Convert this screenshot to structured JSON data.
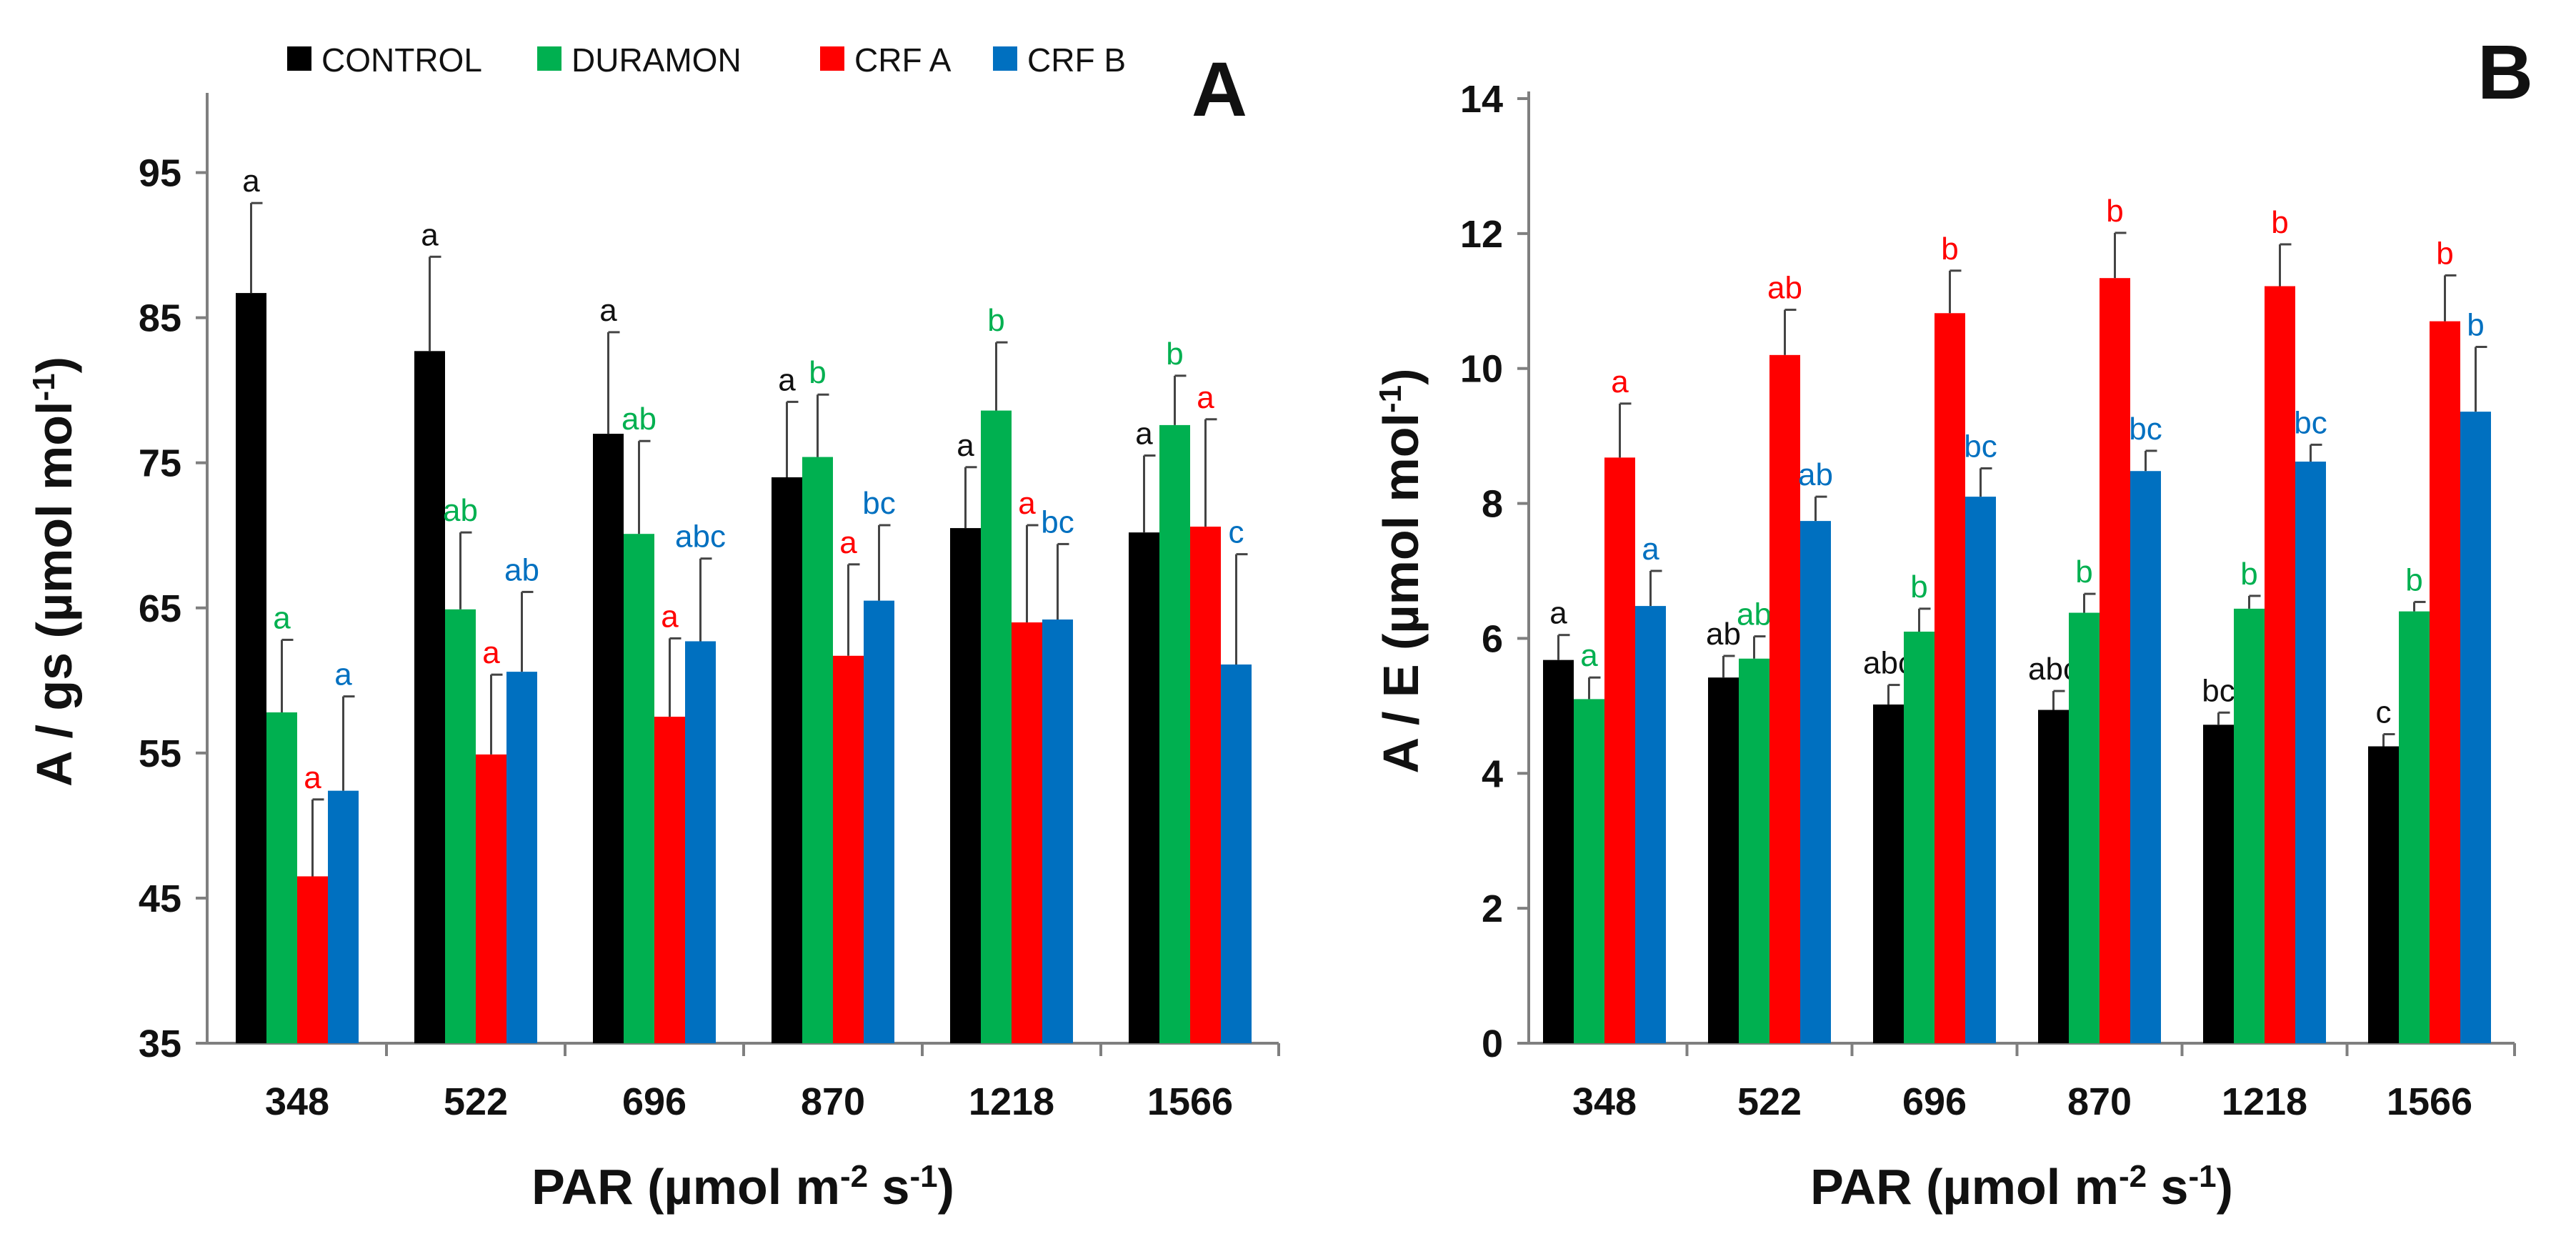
{
  "chart_data": [
    {
      "type": "bar",
      "panel_label": "A",
      "title": "",
      "xlabel": "PAR (µmol m-2 s-1)",
      "ylabel": "A / gs (µmol mol-1)",
      "ylim": [
        35,
        100
      ],
      "yticks": [
        35,
        45,
        55,
        65,
        75,
        85,
        95
      ],
      "categories": [
        "348",
        "522",
        "696",
        "870",
        "1218",
        "1566"
      ],
      "series": [
        {
          "name": "CONTROL",
          "color": "#000000",
          "values": [
            86.7,
            82.7,
            77.0,
            74.0,
            70.5,
            70.2
          ],
          "errors": [
            6.2,
            6.5,
            7.0,
            5.2,
            4.2,
            5.3
          ],
          "letters": [
            "a",
            "a",
            "a",
            "a",
            "a",
            "a"
          ]
        },
        {
          "name": "DURAMON",
          "color": "#00b050",
          "values": [
            57.8,
            64.9,
            70.1,
            75.4,
            78.6,
            77.6
          ],
          "errors": [
            5.0,
            5.3,
            6.4,
            4.3,
            4.7,
            3.4
          ],
          "letters": [
            "a",
            "ab",
            "ab",
            "b",
            "b",
            "b"
          ]
        },
        {
          "name": "CRF A",
          "color": "#ff0000",
          "values": [
            46.5,
            54.9,
            57.5,
            61.7,
            64.0,
            70.6
          ],
          "errors": [
            5.3,
            5.5,
            5.4,
            6.3,
            6.7,
            7.4
          ],
          "letters": [
            "a",
            "a",
            "a",
            "a",
            "a",
            "a"
          ]
        },
        {
          "name": "CRF B",
          "color": "#0070c0",
          "values": [
            52.4,
            60.6,
            62.7,
            65.5,
            64.2,
            61.1
          ],
          "errors": [
            6.5,
            5.5,
            5.7,
            5.2,
            5.2,
            7.6
          ],
          "letters": [
            "a",
            "ab",
            "abc",
            "bc",
            "bc",
            "c"
          ]
        }
      ]
    },
    {
      "type": "bar",
      "panel_label": "B",
      "title": "",
      "xlabel": "PAR (µmol m-2 s-1)",
      "ylabel": "A / E (µmol mol-1)",
      "ylim": [
        0,
        14
      ],
      "yticks": [
        0,
        2,
        4,
        6,
        8,
        10,
        12,
        14
      ],
      "categories": [
        "348",
        "522",
        "696",
        "870",
        "1218",
        "1566"
      ],
      "series": [
        {
          "name": "CONTROL",
          "color": "#000000",
          "values": [
            5.68,
            5.42,
            5.02,
            4.94,
            4.72,
            4.4
          ],
          "errors": [
            0.37,
            0.32,
            0.29,
            0.28,
            0.18,
            0.18
          ],
          "letters": [
            "a",
            "ab",
            "abc",
            "abc",
            "bc",
            "c"
          ]
        },
        {
          "name": "DURAMON",
          "color": "#00b050",
          "values": [
            5.1,
            5.7,
            6.1,
            6.38,
            6.44,
            6.4
          ],
          "errors": [
            0.32,
            0.33,
            0.34,
            0.28,
            0.19,
            0.14
          ],
          "letters": [
            "a",
            "ab",
            "b",
            "b",
            "b",
            "b"
          ]
        },
        {
          "name": "CRF A",
          "color": "#ff0000",
          "values": [
            8.68,
            10.2,
            10.82,
            11.34,
            11.22,
            10.7
          ],
          "errors": [
            0.8,
            0.67,
            0.63,
            0.67,
            0.62,
            0.68
          ],
          "letters": [
            "a",
            "ab",
            "b",
            "b",
            "b",
            "b"
          ]
        },
        {
          "name": "CRF B",
          "color": "#0070c0",
          "values": [
            6.48,
            7.74,
            8.1,
            8.48,
            8.62,
            9.36
          ],
          "errors": [
            0.52,
            0.36,
            0.42,
            0.3,
            0.25,
            0.96
          ],
          "letters": [
            "a",
            "ab",
            "bc",
            "bc",
            "bc",
            "b"
          ]
        }
      ]
    }
  ],
  "legend": [
    "CONTROL",
    "DURAMON",
    "CRF A",
    "CRF B"
  ]
}
